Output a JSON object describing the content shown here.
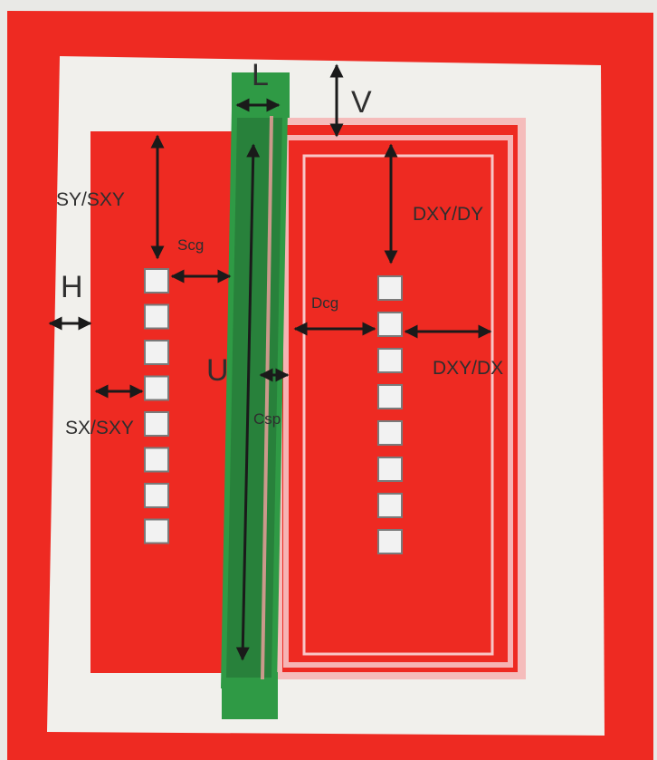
{
  "colors": {
    "background": "#e9e9e6",
    "outer_frame": "#ee2a22",
    "inner_panel": "#f1f0ec",
    "source_region": "#ee2a22",
    "drain_region": "#ee2a22",
    "drain_outline": "#f4a0a0",
    "gate": "#2f9a45",
    "gate_dark": "#1f6e30",
    "contact": "#f2f2f2",
    "contact_border": "#7a7a7a",
    "arrow": "#1a1a1a"
  },
  "labels": {
    "L": "L",
    "V": "V",
    "H": "H",
    "U": "U",
    "SY_SXY": "SY/SXY",
    "Scg": "Scg",
    "SX_SXY": "SX/SXY",
    "Csp": "Csp",
    "DXY_DY": "DXY/DY",
    "Dcg": "Dcg",
    "DXY_DX": "DXY/DX"
  },
  "source_contacts": {
    "count": 8
  },
  "drain_contacts": {
    "count": 8
  }
}
